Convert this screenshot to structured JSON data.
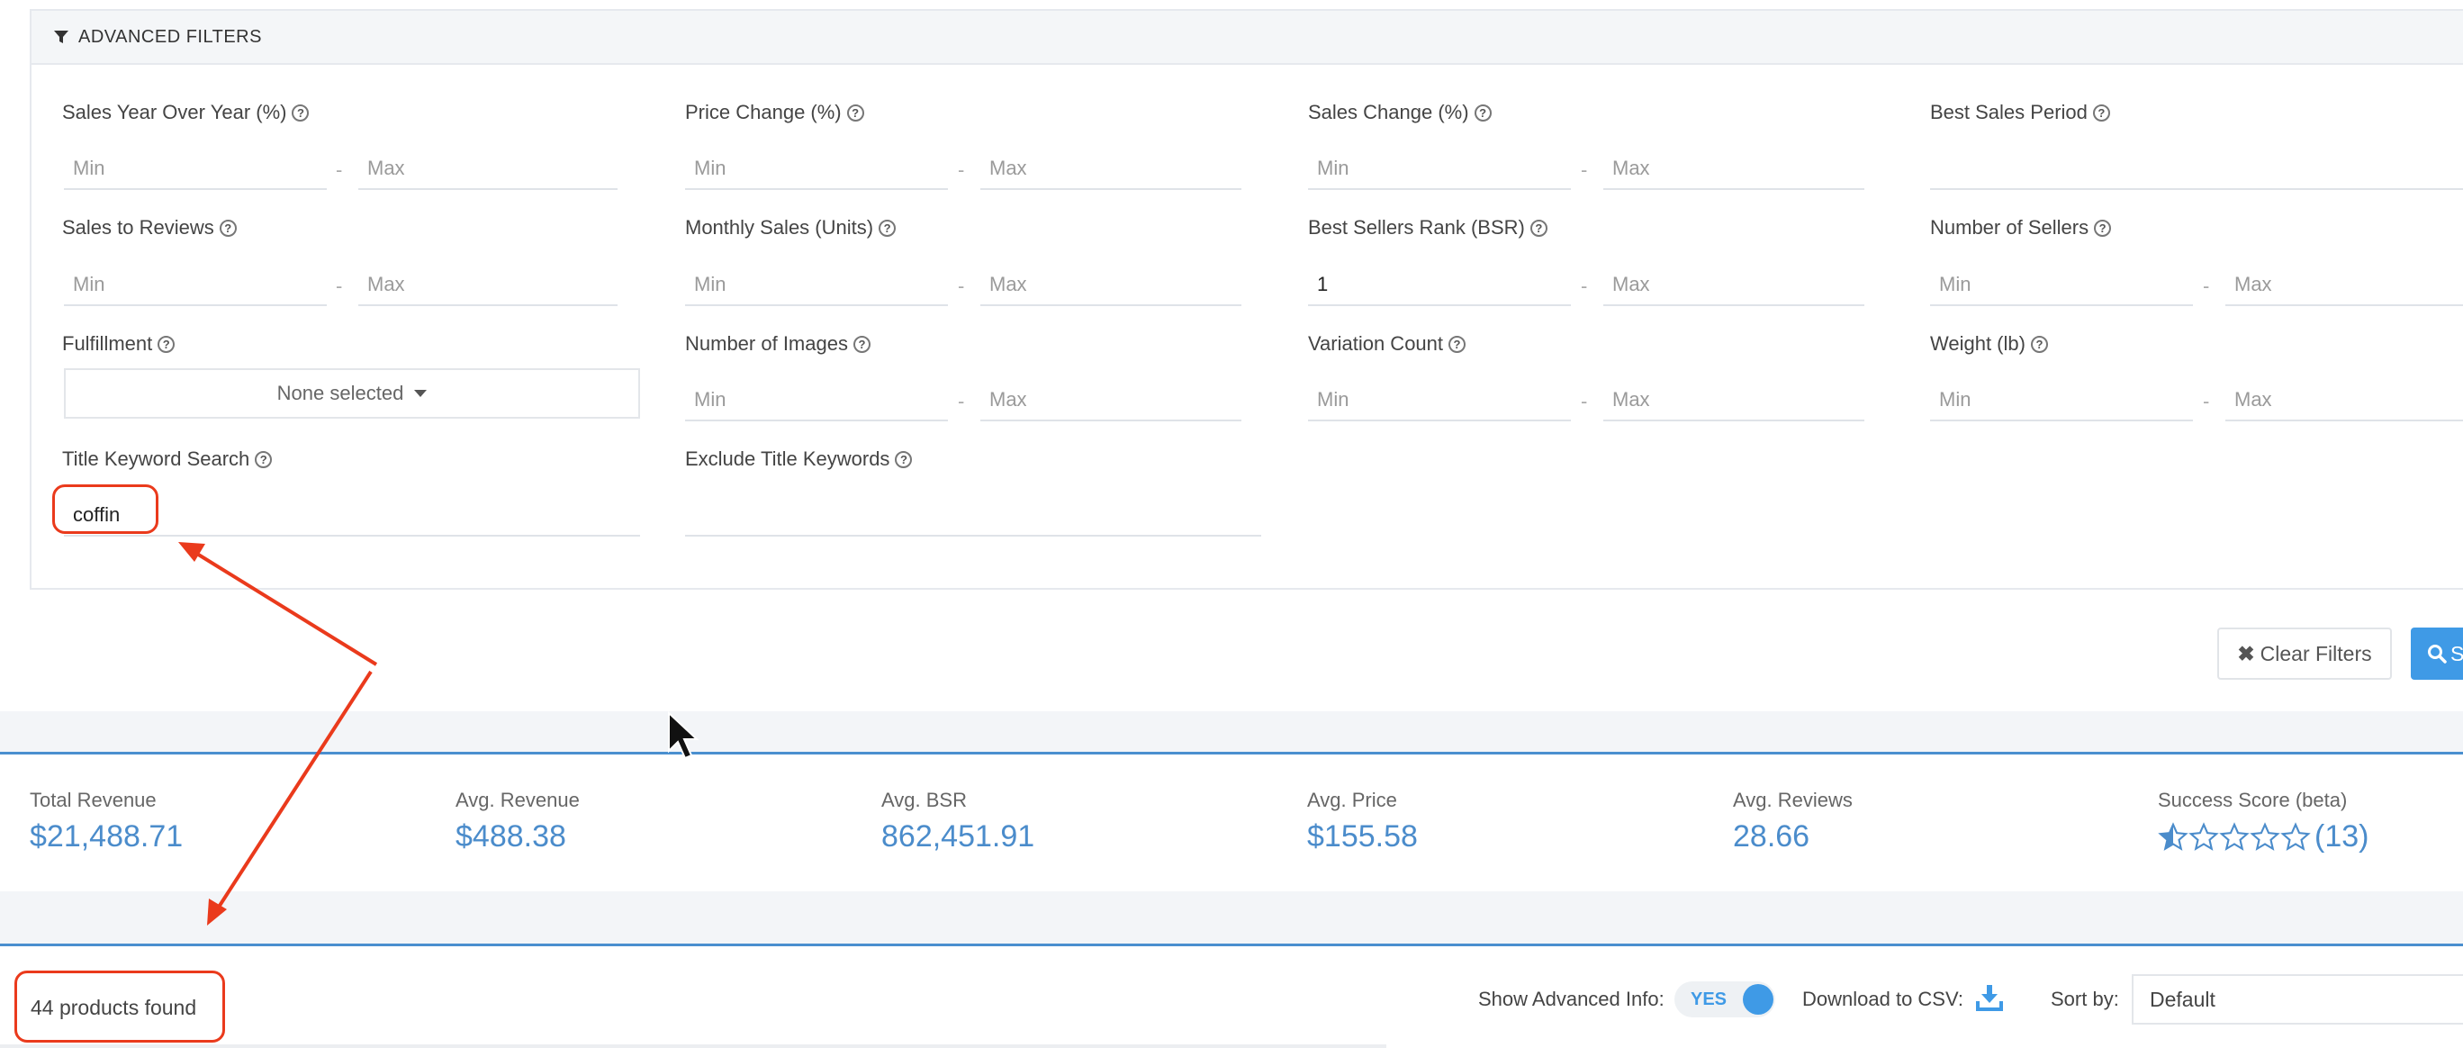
{
  "filters": {
    "header_title": "ADVANCED FILTERS",
    "min_placeholder": "Min",
    "max_placeholder": "Max",
    "dash": "-",
    "help_glyph": "?",
    "labels": {
      "sales_yoy": "Sales Year Over Year (%)",
      "price_change": "Price Change (%)",
      "sales_change": "Sales Change (%)",
      "best_sales_period": "Best Sales Period",
      "sales_to_reviews": "Sales to Reviews",
      "monthly_sales": "Monthly Sales (Units)",
      "bsr": "Best Sellers Rank (BSR)",
      "num_sellers": "Number of Sellers",
      "fulfillment": "Fulfillment",
      "num_images": "Number of Images",
      "variation_count": "Variation Count",
      "weight": "Weight (lb)",
      "title_keyword": "Title Keyword Search",
      "exclude_keywords": "Exclude Title Keywords"
    },
    "values": {
      "bsr_min": "1",
      "title_keyword": "coffin"
    },
    "fulfillment_select": "None selected"
  },
  "buttons": {
    "clear_filters": "Clear Filters",
    "search_partial": "S"
  },
  "stats": [
    {
      "label": "Total Revenue",
      "value": "$21,488.71"
    },
    {
      "label": "Avg. Revenue",
      "value": "$488.38"
    },
    {
      "label": "Avg. BSR",
      "value": "862,451.91"
    },
    {
      "label": "Avg. Price",
      "value": "$155.58"
    },
    {
      "label": "Avg. Reviews",
      "value": "28.66"
    },
    {
      "label": "Success Score (beta)",
      "value": "(13)"
    }
  ],
  "success_score_stars": 0.5,
  "results": {
    "found_text": "44 products found",
    "show_advanced_label": "Show Advanced Info:",
    "toggle_value": "YES",
    "download_label": "Download to CSV:",
    "sort_label": "Sort by:",
    "sort_value": "Default"
  },
  "colors": {
    "accent": "#3f9ae6",
    "stat_value": "#4b8ccb",
    "annotation": "#ea3a1c"
  }
}
